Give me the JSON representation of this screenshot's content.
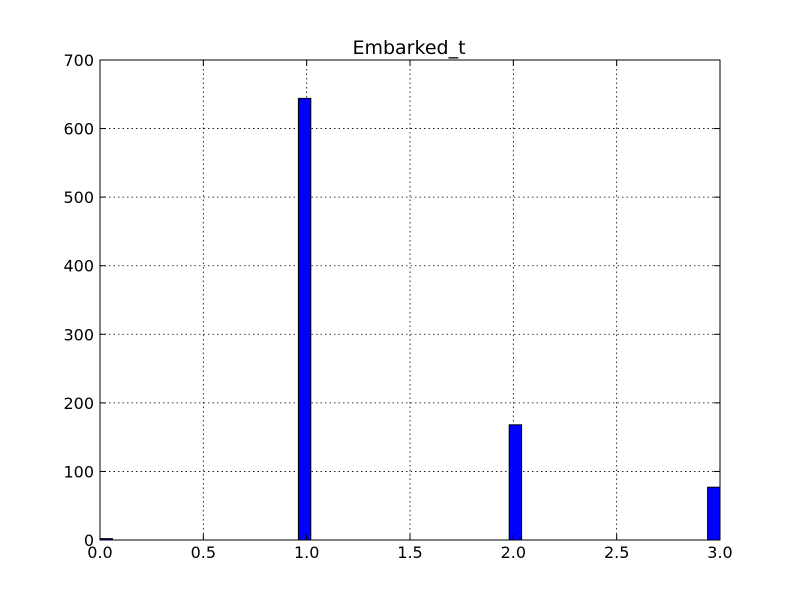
{
  "chart_data": {
    "type": "bar",
    "title": "Embarked_t",
    "xlabel": "",
    "ylabel": "",
    "xlim": [
      0.0,
      3.0
    ],
    "ylim": [
      0,
      700
    ],
    "x_ticks": [
      0.0,
      0.5,
      1.0,
      1.5,
      2.0,
      2.5,
      3.0
    ],
    "x_tick_labels": [
      "0.0",
      "0.5",
      "1.0",
      "1.5",
      "2.0",
      "2.5",
      "3.0"
    ],
    "y_ticks": [
      0,
      100,
      200,
      300,
      400,
      500,
      600,
      700
    ],
    "y_tick_labels": [
      "0",
      "100",
      "200",
      "300",
      "400",
      "500",
      "600",
      "700"
    ],
    "bin_width": 0.06,
    "bars": [
      {
        "x_start": 0.0,
        "value": 2
      },
      {
        "x_start": 0.96,
        "value": 644
      },
      {
        "x_start": 1.98,
        "value": 168
      },
      {
        "x_start": 2.94,
        "value": 77
      }
    ],
    "bar_color": "#0000ff",
    "grid": true,
    "legend": "none"
  }
}
